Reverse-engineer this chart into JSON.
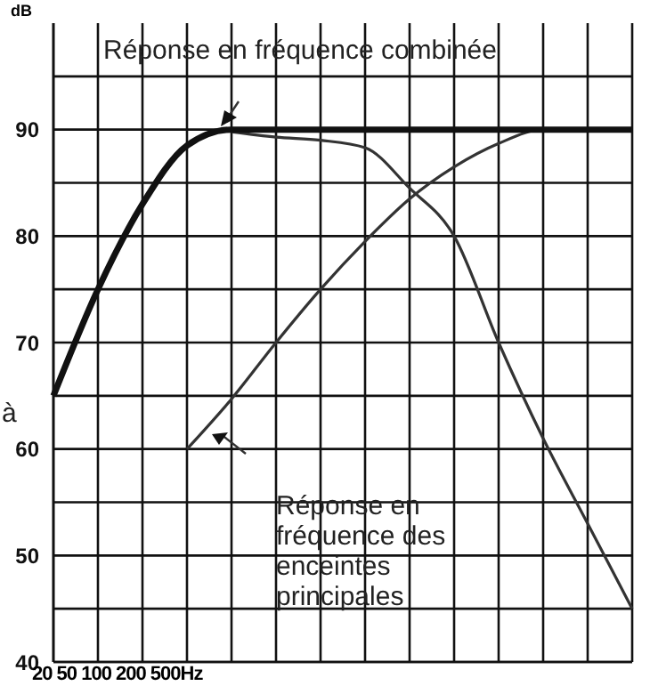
{
  "chart_data": {
    "type": "line",
    "ylabel": "dB",
    "xlabel": "20 50 100 200 500Hz",
    "categories": [
      null,
      null,
      null,
      null,
      null,
      null,
      null,
      null,
      null,
      null,
      null,
      null,
      null,
      null
    ],
    "series": [
      {
        "color": "#333333",
        "values": [
          null,
          null,
          null,
          null,
          89.8,
          89.3,
          89,
          88.3,
          84.5,
          80,
          70,
          61,
          53,
          45
        ]
      },
      {
        "color": "#333333",
        "values": [
          null,
          null,
          null,
          60,
          64.7,
          70,
          75,
          79.5,
          83.5,
          86.5,
          88.7,
          90,
          90,
          90
        ]
      },
      {
        "color": "#111111",
        "values": [
          65,
          75,
          83,
          88.5,
          90,
          90,
          90,
          90,
          90,
          90,
          90,
          90,
          90,
          90
        ]
      }
    ],
    "annotations": [
      "à",
      "Réponse en fréquence combinée",
      "Réponse en fréquence des enceintes principales"
    ],
    "ylim": [
      40,
      100
    ],
    "yticks": [
      40,
      {
        "value": 45,
        "label": null
      },
      50,
      {
        "value": 55,
        "label": null
      },
      60,
      {
        "value": 65,
        "label": null
      },
      70,
      {
        "value": 75,
        "label": null
      },
      80,
      {
        "value": 85,
        "label": null
      },
      90,
      {
        "value": 95,
        "label": null
      }
    ],
    "grid": true,
    "marker": "none",
    "line_style": "solid"
  }
}
